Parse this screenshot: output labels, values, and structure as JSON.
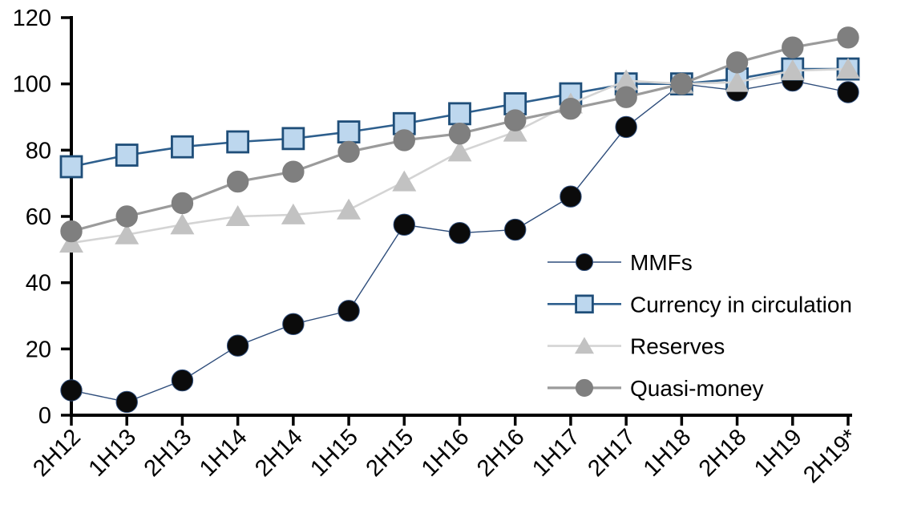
{
  "chart_data": {
    "type": "line",
    "title": "",
    "xlabel": "",
    "ylabel": "",
    "ylim": [
      0,
      120
    ],
    "yticks": [
      0,
      20,
      40,
      60,
      80,
      100,
      120
    ],
    "grid": false,
    "legend_position": "inside-right",
    "categories": [
      "2H12",
      "1H13",
      "2H13",
      "1H14",
      "2H14",
      "1H15",
      "2H15",
      "1H16",
      "2H16",
      "1H17",
      "2H17",
      "1H18",
      "2H18",
      "1H19",
      "2H19*"
    ],
    "series": [
      {
        "name": "MMFs",
        "marker": "circle",
        "marker_fill": "#0b0b0b",
        "marker_border": "#2e4d7b",
        "line_color": "#2e4d7b",
        "line_width": 1.4,
        "values": [
          7.5,
          4,
          10.5,
          21,
          27.5,
          31.5,
          57.5,
          55,
          56,
          66,
          87,
          100,
          98,
          101,
          97.5
        ]
      },
      {
        "name": "Currency in circulation",
        "marker": "square",
        "marker_fill": "#bdd7ee",
        "marker_border": "#1f4e79",
        "line_color": "#2e5f8d",
        "line_width": 2.6,
        "values": [
          75,
          78.5,
          81,
          82.5,
          83.5,
          85.5,
          88,
          91,
          94,
          97,
          100,
          100,
          101.5,
          104.5,
          104.5
        ]
      },
      {
        "name": "Reserves",
        "marker": "triangle",
        "marker_fill": "#c2c2c2",
        "marker_border": "#c2c2c2",
        "line_color": "#d4d4d4",
        "line_width": 2.6,
        "values": [
          52,
          54.5,
          57.5,
          60,
          60.5,
          62,
          70.5,
          79.5,
          85.5,
          94,
          101,
          100,
          100.5,
          104,
          104.5
        ]
      },
      {
        "name": "Quasi-money",
        "marker": "circle",
        "marker_fill": "#7f7f7f",
        "marker_border": "#7f7f7f",
        "line_color": "#9b9b9b",
        "line_width": 3.2,
        "values": [
          55.5,
          60,
          64,
          70.5,
          73.5,
          79.5,
          83,
          85,
          89,
          92.5,
          96,
          100,
          106.5,
          111,
          114
        ]
      }
    ],
    "axis_color": "#000000"
  }
}
